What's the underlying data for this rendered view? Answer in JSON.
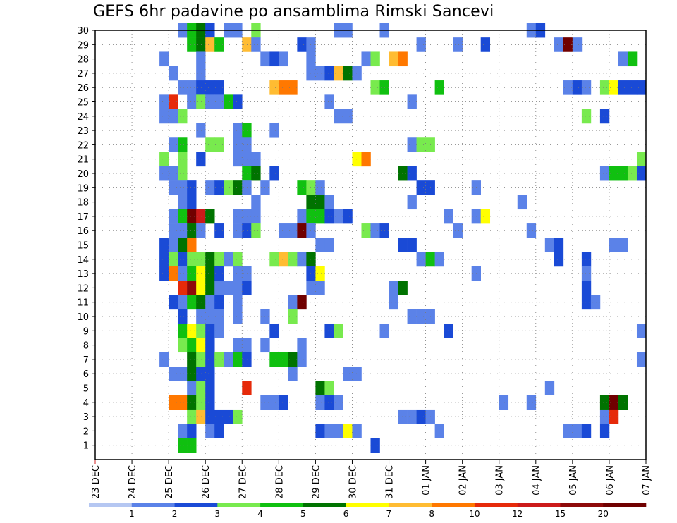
{
  "title": "GEFS 6hr padavine po ansamblima Rimski Sancevi",
  "chart_data": {
    "type": "heatmap",
    "title": "GEFS 6hr padavine po ansamblima Rimski Sancevi",
    "x_categories": [
      "23 DEC",
      "24 DEC",
      "25 DEC",
      "26 DEC",
      "27 DEC",
      "28 DEC",
      "29 DEC",
      "30 DEC",
      "31 DEC",
      "01 JAN",
      "02 JAN",
      "03 JAN",
      "04 JAN",
      "05 JAN",
      "06 JAN",
      "07 JAN"
    ],
    "y_categories": [
      "1",
      "2",
      "3",
      "4",
      "5",
      "6",
      "7",
      "8",
      "9",
      "10",
      "11",
      "12",
      "13",
      "14",
      "15",
      "16",
      "17",
      "18",
      "19",
      "20",
      "21",
      "22",
      "23",
      "24",
      "25",
      "26",
      "27",
      "28",
      "29",
      "30"
    ],
    "x_step_hours": 6,
    "x_range_days": [
      0,
      15
    ],
    "y_range": [
      0,
      30
    ],
    "grid": true,
    "colorbar": {
      "labels": [
        "1",
        "2",
        "3",
        "4",
        "5",
        "6",
        "7",
        "8",
        "10",
        "12",
        "15",
        "20"
      ],
      "colors": [
        "#b5c7f2",
        "#5b82e8",
        "#1a4ad6",
        "#78ea4e",
        "#10c010",
        "#007300",
        "#ffff00",
        "#ffbc32",
        "#ff7800",
        "#e62a0a",
        "#cc1a1a",
        "#8e0a0a",
        "#700000"
      ]
    },
    "cells": [
      [
        2.25,
        30,
        1
      ],
      [
        2.5,
        30,
        4
      ],
      [
        2.75,
        30,
        5
      ],
      [
        3,
        30,
        2
      ],
      [
        3.5,
        30,
        1
      ],
      [
        3.75,
        30,
        1
      ],
      [
        4.25,
        30,
        3
      ],
      [
        6.5,
        30,
        1
      ],
      [
        6.75,
        30,
        1
      ],
      [
        7.75,
        30,
        1
      ],
      [
        11.75,
        30,
        1
      ],
      [
        12,
        30,
        2
      ],
      [
        2.5,
        29,
        4
      ],
      [
        2.75,
        29,
        5
      ],
      [
        3,
        29,
        7
      ],
      [
        3.25,
        29,
        4
      ],
      [
        4,
        29,
        7
      ],
      [
        4.25,
        29,
        1
      ],
      [
        5.5,
        29,
        2
      ],
      [
        5.75,
        29,
        1
      ],
      [
        8.75,
        29,
        1
      ],
      [
        9.75,
        29,
        1
      ],
      [
        10.5,
        29,
        2
      ],
      [
        12.5,
        29,
        1
      ],
      [
        12.75,
        29,
        12
      ],
      [
        13,
        29,
        1
      ],
      [
        1.75,
        28,
        1
      ],
      [
        2.75,
        28,
        1
      ],
      [
        4.5,
        28,
        1
      ],
      [
        4.75,
        28,
        2
      ],
      [
        5,
        28,
        1
      ],
      [
        5.75,
        28,
        1
      ],
      [
        7.25,
        28,
        1
      ],
      [
        7.5,
        28,
        3
      ],
      [
        8,
        28,
        7
      ],
      [
        8.25,
        28,
        8
      ],
      [
        14.25,
        28,
        1
      ],
      [
        14.5,
        28,
        4
      ],
      [
        2,
        27,
        1
      ],
      [
        2.75,
        27,
        1
      ],
      [
        5.75,
        27,
        1
      ],
      [
        6,
        27,
        1
      ],
      [
        6.25,
        27,
        2
      ],
      [
        6.5,
        27,
        7
      ],
      [
        6.75,
        27,
        5
      ],
      [
        7,
        27,
        1
      ],
      [
        2.25,
        26,
        1
      ],
      [
        2.5,
        26,
        1
      ],
      [
        2.75,
        26,
        2
      ],
      [
        3,
        26,
        2
      ],
      [
        3.25,
        26,
        2
      ],
      [
        4.75,
        26,
        7
      ],
      [
        5,
        26,
        8
      ],
      [
        5.25,
        26,
        8
      ],
      [
        7.5,
        26,
        3
      ],
      [
        7.75,
        26,
        4
      ],
      [
        9.25,
        26,
        4
      ],
      [
        12.75,
        26,
        1
      ],
      [
        13,
        26,
        2
      ],
      [
        13.25,
        26,
        1
      ],
      [
        13.75,
        26,
        3
      ],
      [
        14,
        26,
        6
      ],
      [
        14.25,
        26,
        2
      ],
      [
        14.5,
        26,
        2
      ],
      [
        14.75,
        26,
        2
      ],
      [
        1.75,
        25,
        1
      ],
      [
        2,
        25,
        9
      ],
      [
        2.5,
        25,
        1
      ],
      [
        2.75,
        25,
        3
      ],
      [
        3,
        25,
        1
      ],
      [
        3.25,
        25,
        1
      ],
      [
        3.5,
        25,
        4
      ],
      [
        3.75,
        25,
        2
      ],
      [
        6.25,
        25,
        1
      ],
      [
        8.5,
        25,
        1
      ],
      [
        1.75,
        24,
        1
      ],
      [
        2,
        24,
        1
      ],
      [
        2.25,
        24,
        3
      ],
      [
        6.5,
        24,
        1
      ],
      [
        6.75,
        24,
        1
      ],
      [
        13.25,
        24,
        3
      ],
      [
        13.75,
        24,
        2
      ],
      [
        2.75,
        23,
        1
      ],
      [
        3.75,
        23,
        1
      ],
      [
        4,
        23,
        4
      ],
      [
        4.75,
        23,
        1
      ],
      [
        2,
        22,
        1
      ],
      [
        2.25,
        22,
        4
      ],
      [
        3,
        22,
        3
      ],
      [
        3.25,
        22,
        3
      ],
      [
        3.75,
        22,
        1
      ],
      [
        4,
        22,
        1
      ],
      [
        8.5,
        22,
        1
      ],
      [
        8.75,
        22,
        3
      ],
      [
        9,
        22,
        3
      ],
      [
        1.75,
        21,
        3
      ],
      [
        2.25,
        21,
        3
      ],
      [
        2.75,
        21,
        2
      ],
      [
        3.75,
        21,
        1
      ],
      [
        4,
        21,
        1
      ],
      [
        4.25,
        21,
        1
      ],
      [
        7,
        21,
        6
      ],
      [
        7.25,
        21,
        8
      ],
      [
        14.75,
        21,
        3
      ],
      [
        1.75,
        20,
        1
      ],
      [
        2,
        20,
        1
      ],
      [
        2.25,
        20,
        3
      ],
      [
        4,
        20,
        4
      ],
      [
        4.25,
        20,
        5
      ],
      [
        4.75,
        20,
        2
      ],
      [
        8.25,
        20,
        5
      ],
      [
        8.5,
        20,
        2
      ],
      [
        13.75,
        20,
        1
      ],
      [
        14,
        20,
        4
      ],
      [
        14.25,
        20,
        4
      ],
      [
        14.5,
        20,
        3
      ],
      [
        14.75,
        20,
        2
      ],
      [
        2,
        19,
        1
      ],
      [
        2.25,
        19,
        1
      ],
      [
        2.5,
        19,
        2
      ],
      [
        3,
        19,
        1
      ],
      [
        3.25,
        19,
        2
      ],
      [
        3.5,
        19,
        3
      ],
      [
        3.75,
        19,
        5
      ],
      [
        4,
        19,
        1
      ],
      [
        4.5,
        19,
        1
      ],
      [
        5.5,
        19,
        4
      ],
      [
        5.75,
        19,
        3
      ],
      [
        6,
        19,
        1
      ],
      [
        8.75,
        19,
        2
      ],
      [
        9,
        19,
        2
      ],
      [
        10.25,
        19,
        1
      ],
      [
        2.25,
        18,
        1
      ],
      [
        2.5,
        18,
        2
      ],
      [
        4.25,
        18,
        1
      ],
      [
        5.75,
        18,
        5
      ],
      [
        6,
        18,
        5
      ],
      [
        6.25,
        18,
        1
      ],
      [
        8.5,
        18,
        1
      ],
      [
        11.5,
        18,
        1
      ],
      [
        2,
        17,
        1
      ],
      [
        2.25,
        17,
        4
      ],
      [
        2.5,
        17,
        12
      ],
      [
        2.75,
        17,
        10
      ],
      [
        3,
        17,
        5
      ],
      [
        3.75,
        17,
        1
      ],
      [
        4,
        17,
        1
      ],
      [
        4.25,
        17,
        1
      ],
      [
        5.5,
        17,
        1
      ],
      [
        5.75,
        17,
        4
      ],
      [
        6,
        17,
        4
      ],
      [
        6.25,
        17,
        2
      ],
      [
        6.5,
        17,
        1
      ],
      [
        6.75,
        17,
        2
      ],
      [
        9.5,
        17,
        1
      ],
      [
        10.25,
        17,
        1
      ],
      [
        10.5,
        17,
        6
      ],
      [
        2,
        16,
        1
      ],
      [
        2.25,
        16,
        1
      ],
      [
        2.5,
        16,
        5
      ],
      [
        2.75,
        16,
        1
      ],
      [
        3.25,
        16,
        2
      ],
      [
        3.75,
        16,
        1
      ],
      [
        4,
        16,
        2
      ],
      [
        4.25,
        16,
        3
      ],
      [
        5,
        16,
        1
      ],
      [
        5.25,
        16,
        1
      ],
      [
        5.5,
        16,
        12
      ],
      [
        5.75,
        16,
        1
      ],
      [
        7.25,
        16,
        3
      ],
      [
        7.5,
        16,
        1
      ],
      [
        7.75,
        16,
        2
      ],
      [
        9.75,
        16,
        1
      ],
      [
        11.75,
        16,
        1
      ],
      [
        1.75,
        15,
        2
      ],
      [
        2,
        15,
        1
      ],
      [
        2.25,
        15,
        5
      ],
      [
        2.5,
        15,
        8
      ],
      [
        6,
        15,
        1
      ],
      [
        6.25,
        15,
        1
      ],
      [
        8.25,
        15,
        2
      ],
      [
        8.5,
        15,
        2
      ],
      [
        12.25,
        15,
        1
      ],
      [
        12.5,
        15,
        2
      ],
      [
        14,
        15,
        1
      ],
      [
        14.25,
        15,
        1
      ],
      [
        1.75,
        14,
        2
      ],
      [
        2,
        14,
        3
      ],
      [
        2.25,
        14,
        2
      ],
      [
        2.5,
        14,
        3
      ],
      [
        2.75,
        14,
        3
      ],
      [
        3,
        14,
        5
      ],
      [
        3.25,
        14,
        3
      ],
      [
        3.5,
        14,
        1
      ],
      [
        3.75,
        14,
        3
      ],
      [
        4.75,
        14,
        3
      ],
      [
        5,
        14,
        7
      ],
      [
        5.25,
        14,
        3
      ],
      [
        5.5,
        14,
        1
      ],
      [
        5.75,
        14,
        5
      ],
      [
        8.75,
        14,
        1
      ],
      [
        9,
        14,
        4
      ],
      [
        9.25,
        14,
        1
      ],
      [
        12.5,
        14,
        2
      ],
      [
        13.25,
        14,
        2
      ],
      [
        1.75,
        13,
        2
      ],
      [
        2,
        13,
        8
      ],
      [
        2.25,
        13,
        1
      ],
      [
        2.5,
        13,
        4
      ],
      [
        2.75,
        13,
        6
      ],
      [
        3,
        13,
        5
      ],
      [
        3.25,
        13,
        2
      ],
      [
        3.75,
        13,
        1
      ],
      [
        4,
        13,
        1
      ],
      [
        5.75,
        13,
        2
      ],
      [
        6,
        13,
        6
      ],
      [
        10.25,
        13,
        1
      ],
      [
        13.25,
        13,
        1
      ],
      [
        2.25,
        12,
        9
      ],
      [
        2.5,
        12,
        11
      ],
      [
        2.75,
        12,
        6
      ],
      [
        3,
        12,
        5
      ],
      [
        3.25,
        12,
        1
      ],
      [
        3.5,
        12,
        1
      ],
      [
        3.75,
        12,
        1
      ],
      [
        4,
        12,
        2
      ],
      [
        5.75,
        12,
        1
      ],
      [
        6,
        12,
        1
      ],
      [
        8,
        12,
        1
      ],
      [
        8.25,
        12,
        5
      ],
      [
        13.25,
        12,
        2
      ],
      [
        2,
        11,
        2
      ],
      [
        2.25,
        11,
        1
      ],
      [
        2.5,
        11,
        4
      ],
      [
        2.75,
        11,
        5
      ],
      [
        3,
        11,
        1
      ],
      [
        3.25,
        11,
        2
      ],
      [
        3.75,
        11,
        1
      ],
      [
        5.25,
        11,
        1
      ],
      [
        5.5,
        11,
        12
      ],
      [
        8,
        11,
        1
      ],
      [
        13.25,
        11,
        2
      ],
      [
        13.5,
        11,
        1
      ],
      [
        2.25,
        10,
        2
      ],
      [
        2.75,
        10,
        1
      ],
      [
        3,
        10,
        1
      ],
      [
        3.25,
        10,
        1
      ],
      [
        3.75,
        10,
        1
      ],
      [
        4.5,
        10,
        1
      ],
      [
        5.25,
        10,
        3
      ],
      [
        8.5,
        10,
        1
      ],
      [
        8.75,
        10,
        1
      ],
      [
        9,
        10,
        1
      ],
      [
        2.25,
        9,
        4
      ],
      [
        2.5,
        9,
        6
      ],
      [
        2.75,
        9,
        3
      ],
      [
        3,
        9,
        2
      ],
      [
        3.25,
        9,
        1
      ],
      [
        4.75,
        9,
        2
      ],
      [
        6.25,
        9,
        2
      ],
      [
        6.5,
        9,
        3
      ],
      [
        7.75,
        9,
        1
      ],
      [
        9.5,
        9,
        2
      ],
      [
        14.75,
        9,
        1
      ],
      [
        2.25,
        8,
        3
      ],
      [
        2.5,
        8,
        4
      ],
      [
        2.75,
        8,
        6
      ],
      [
        3,
        8,
        2
      ],
      [
        3.75,
        8,
        1
      ],
      [
        4,
        8,
        1
      ],
      [
        4.5,
        8,
        1
      ],
      [
        5.5,
        8,
        1
      ],
      [
        1.75,
        7,
        1
      ],
      [
        2.5,
        7,
        5
      ],
      [
        2.75,
        7,
        3
      ],
      [
        3,
        7,
        2
      ],
      [
        3.25,
        7,
        3
      ],
      [
        3.5,
        7,
        1
      ],
      [
        3.75,
        7,
        4
      ],
      [
        4,
        7,
        2
      ],
      [
        4.75,
        7,
        4
      ],
      [
        5,
        7,
        4
      ],
      [
        5.25,
        7,
        5
      ],
      [
        5.5,
        7,
        1
      ],
      [
        14.75,
        7,
        1
      ],
      [
        2,
        6,
        1
      ],
      [
        2.25,
        6,
        1
      ],
      [
        2.5,
        6,
        5
      ],
      [
        2.75,
        6,
        2
      ],
      [
        3,
        6,
        2
      ],
      [
        5.25,
        6,
        1
      ],
      [
        6.75,
        6,
        1
      ],
      [
        7,
        6,
        1
      ],
      [
        2.5,
        5,
        1
      ],
      [
        2.75,
        5,
        3
      ],
      [
        3,
        5,
        2
      ],
      [
        4,
        5,
        9
      ],
      [
        6,
        5,
        5
      ],
      [
        6.25,
        5,
        3
      ],
      [
        12.25,
        5,
        1
      ],
      [
        2,
        4,
        8
      ],
      [
        2.25,
        4,
        8
      ],
      [
        2.5,
        4,
        5
      ],
      [
        2.75,
        4,
        3
      ],
      [
        3,
        4,
        2
      ],
      [
        4.5,
        4,
        1
      ],
      [
        4.75,
        4,
        1
      ],
      [
        5,
        4,
        2
      ],
      [
        6,
        4,
        1
      ],
      [
        6.25,
        4,
        2
      ],
      [
        6.5,
        4,
        1
      ],
      [
        11,
        4,
        1
      ],
      [
        11.75,
        4,
        1
      ],
      [
        13.75,
        4,
        5
      ],
      [
        14,
        4,
        12
      ],
      [
        14.25,
        4,
        5
      ],
      [
        2.5,
        3,
        3
      ],
      [
        2.75,
        3,
        7
      ],
      [
        3,
        3,
        2
      ],
      [
        3.25,
        3,
        2
      ],
      [
        3.5,
        3,
        2
      ],
      [
        3.75,
        3,
        3
      ],
      [
        8.25,
        3,
        1
      ],
      [
        8.5,
        3,
        1
      ],
      [
        8.75,
        3,
        2
      ],
      [
        9,
        3,
        1
      ],
      [
        13.75,
        3,
        1
      ],
      [
        14,
        3,
        9
      ],
      [
        2.25,
        2,
        1
      ],
      [
        2.5,
        2,
        2
      ],
      [
        3,
        2,
        1
      ],
      [
        3.25,
        2,
        2
      ],
      [
        6,
        2,
        2
      ],
      [
        6.25,
        2,
        1
      ],
      [
        6.5,
        2,
        1
      ],
      [
        6.75,
        2,
        6
      ],
      [
        7,
        2,
        1
      ],
      [
        9.25,
        2,
        1
      ],
      [
        12.75,
        2,
        1
      ],
      [
        13,
        2,
        1
      ],
      [
        13.25,
        2,
        2
      ],
      [
        13.75,
        2,
        2
      ],
      [
        2.25,
        1,
        4
      ],
      [
        2.5,
        1,
        4
      ],
      [
        7.5,
        1,
        2
      ]
    ]
  }
}
